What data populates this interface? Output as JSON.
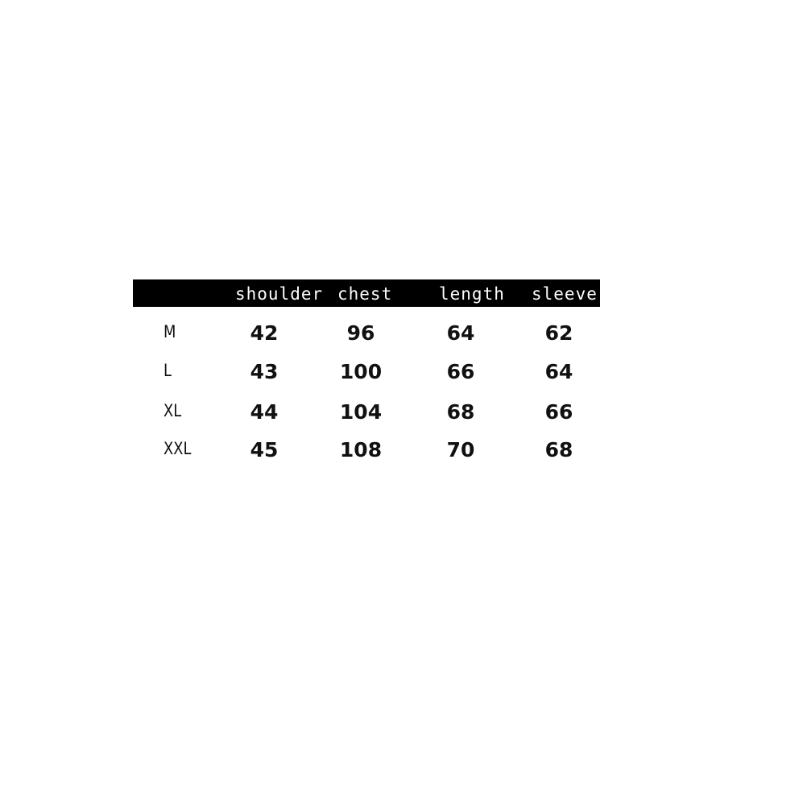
{
  "table": {
    "headers": [
      "shoulder",
      "chest",
      "length",
      "sleeve"
    ],
    "rows": [
      {
        "size": "M",
        "values": [
          "42",
          "96",
          "64",
          "62"
        ]
      },
      {
        "size": "L",
        "values": [
          "43",
          "100",
          "66",
          "64"
        ]
      },
      {
        "size": "XL",
        "values": [
          "44",
          "104",
          "68",
          "66"
        ]
      },
      {
        "size": "XXL",
        "values": [
          "45",
          "108",
          "70",
          "68"
        ]
      }
    ],
    "colors": {
      "header_bg": "#000000",
      "header_text": "#ffffff",
      "body_text": "#111111"
    }
  }
}
